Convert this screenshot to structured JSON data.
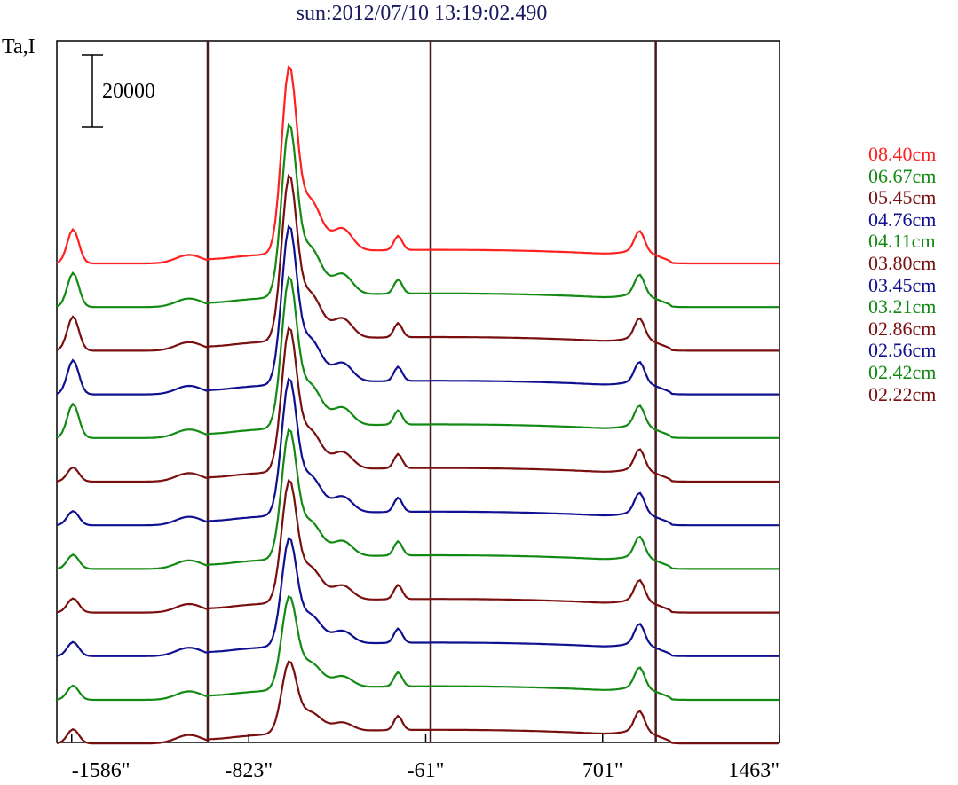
{
  "title": "sun:2012/07/10 13:19:02.490",
  "ylabel": "Ta,I",
  "scale_bar_label": "20000",
  "chart_data": {
    "type": "line",
    "xlabel": "",
    "ylabel": "Ta,I",
    "xlim": [
      -1650,
      1463
    ],
    "x_ticks": [
      {
        "value": -1586,
        "label": "-1586\""
      },
      {
        "value": -823,
        "label": "-823\""
      },
      {
        "value": -61,
        "label": "-61\""
      },
      {
        "value": 701,
        "label": "701\""
      },
      {
        "value": 1463,
        "label": "1463\""
      }
    ],
    "vertical_markers": [
      -1000,
      -40,
      930
    ],
    "scale_bar": 20000,
    "series": [
      {
        "name": "08.40cm",
        "color": "#ff2020",
        "amp": 1.3
      },
      {
        "name": "06.67cm",
        "color": "#138a13",
        "amp": 1.2
      },
      {
        "name": "05.45cm",
        "color": "#7a0f0f",
        "amp": 1.15
      },
      {
        "name": "04.76cm",
        "color": "#101090",
        "amp": 1.1
      },
      {
        "name": "04.11cm",
        "color": "#138a13",
        "amp": 1.05
      },
      {
        "name": "03.80cm",
        "color": "#7a0f0f",
        "amp": 1.0
      },
      {
        "name": "03.45cm",
        "color": "#101090",
        "amp": 0.95
      },
      {
        "name": "03.21cm",
        "color": "#138a13",
        "amp": 0.9
      },
      {
        "name": "02.86cm",
        "color": "#7a0f0f",
        "amp": 0.85
      },
      {
        "name": "02.56cm",
        "color": "#101090",
        "amp": 0.75
      },
      {
        "name": "02.42cm",
        "color": "#138a13",
        "amp": 0.65
      },
      {
        "name": "02.22cm",
        "color": "#7a0f0f",
        "amp": 0.5
      }
    ]
  }
}
